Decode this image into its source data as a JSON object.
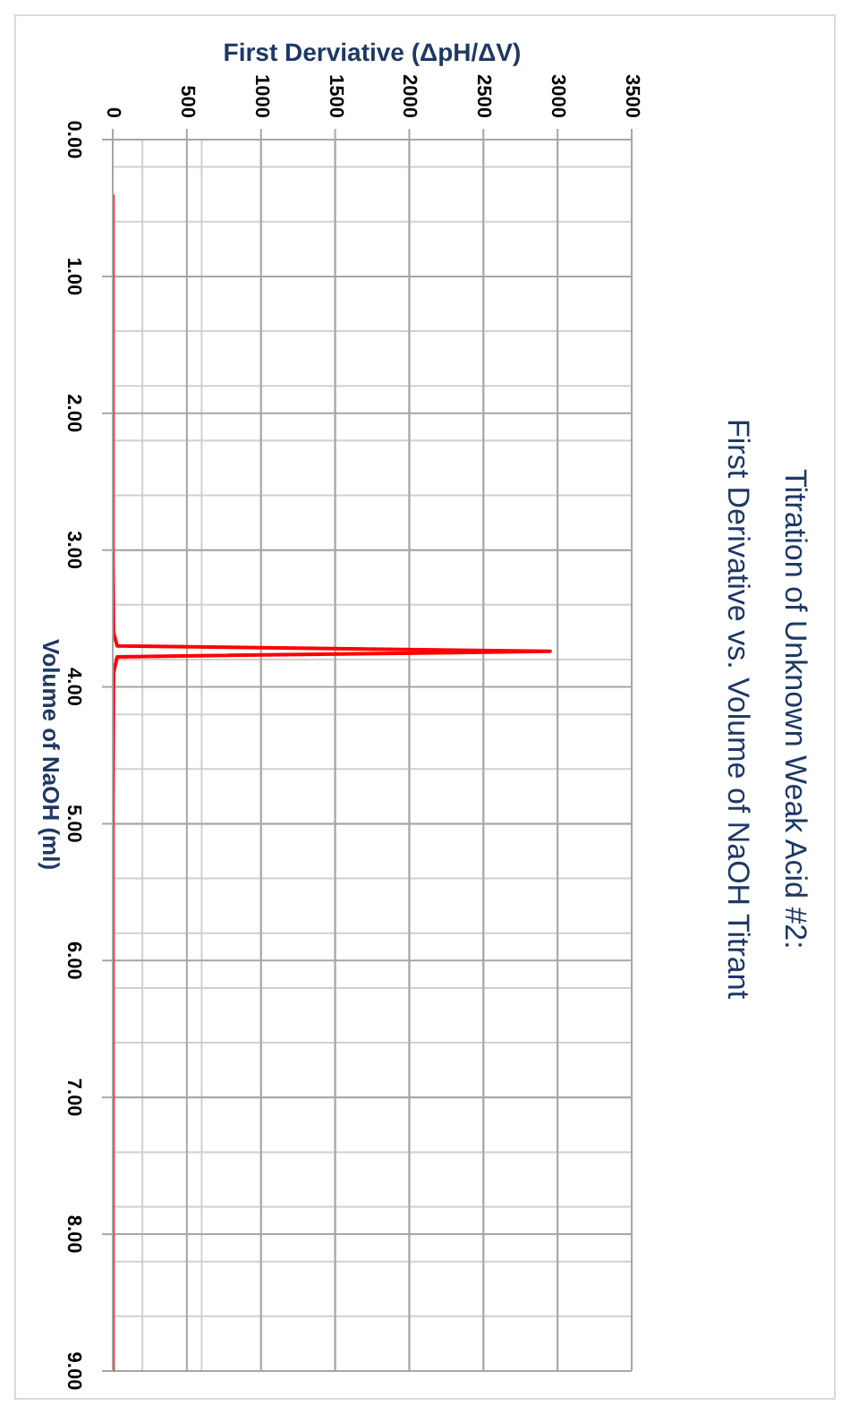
{
  "chart_data": {
    "type": "line",
    "title": "Titration of Unknown Weak Acid #2:",
    "subtitle": "First Derivative vs. Volume of NaOH Titrant",
    "xlabel": "First Derviative (ΔpH/ΔV)",
    "ylabel": "Volume of NaOH (ml)",
    "x": [
      0,
      0,
      0,
      0,
      5,
      30,
      2950,
      30,
      5,
      0,
      0,
      0,
      0,
      0
    ],
    "series": [
      {
        "color": "#ff0000",
        "values": [
          0.4,
          1.0,
          2.0,
          3.0,
          3.6,
          3.7,
          3.74,
          3.78,
          3.9,
          5.0,
          6.0,
          7.0,
          8.0,
          9.0
        ]
      }
    ],
    "xlim": [
      0,
      3500
    ],
    "xticks": [
      0,
      500,
      1000,
      1500,
      2000,
      2500,
      3000,
      3500
    ],
    "ylim": [
      9,
      0
    ],
    "yticks": [
      {
        "value": 0,
        "label": "0.00"
      },
      {
        "value": 1,
        "label": "1.00"
      },
      {
        "value": 2,
        "label": "2.00"
      },
      {
        "value": 3,
        "label": "3.00"
      },
      {
        "value": 4,
        "label": "4.00"
      },
      {
        "value": 5,
        "label": "5.00"
      },
      {
        "value": 6,
        "label": "6.00"
      },
      {
        "value": 7,
        "label": "7.00"
      },
      {
        "value": 8,
        "label": "8.00"
      },
      {
        "value": 9,
        "label": "9.00"
      }
    ],
    "grid": true,
    "marker": "none",
    "line_style": "solid"
  }
}
